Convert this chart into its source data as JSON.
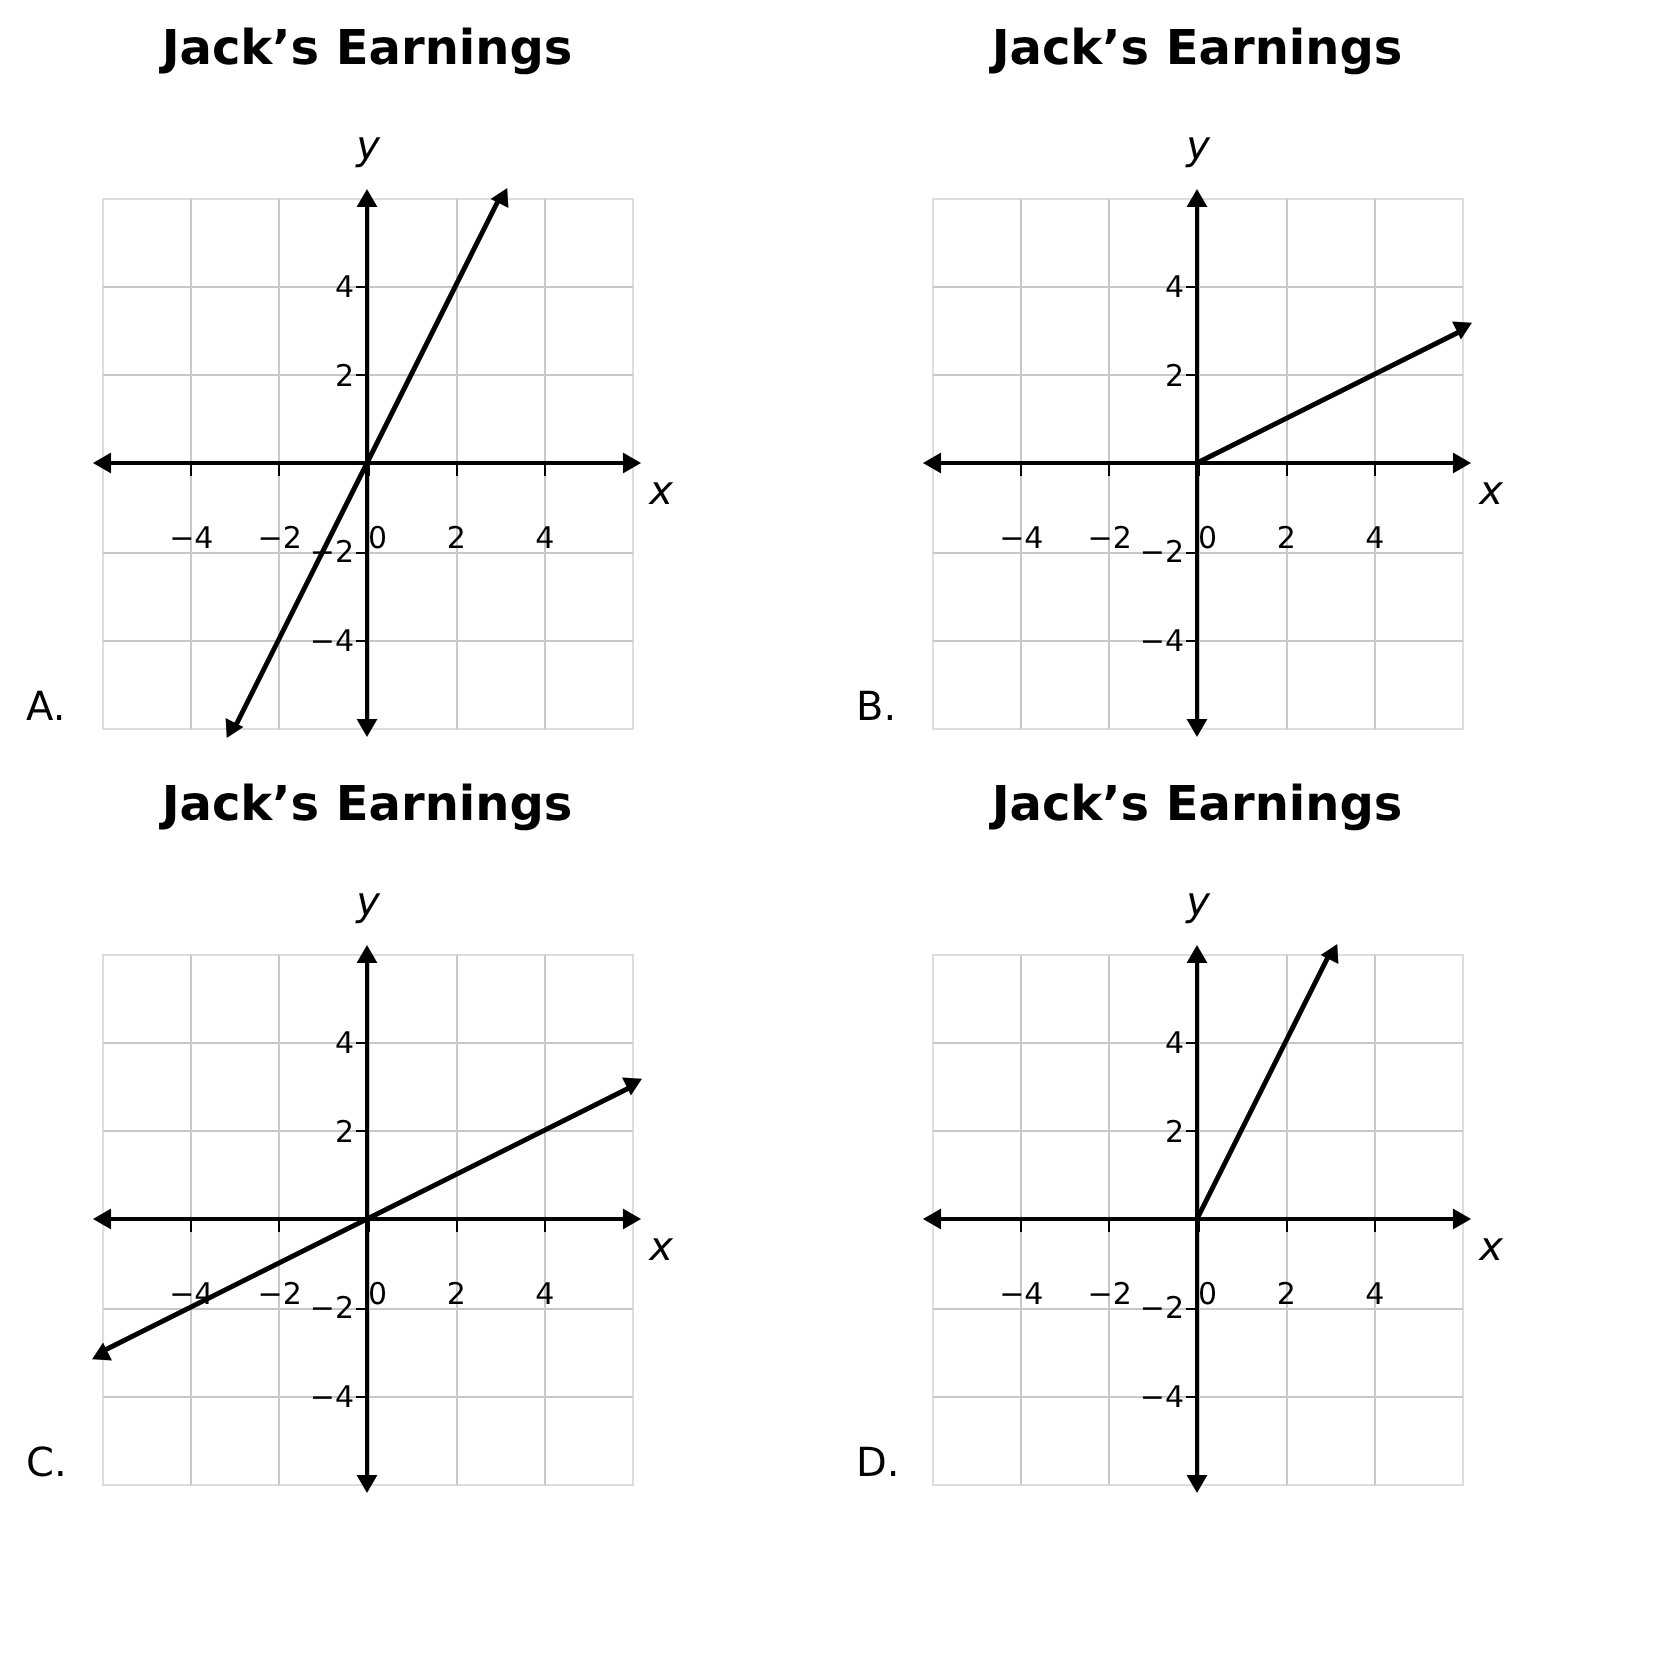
{
  "chart_data": [
    {
      "type": "line",
      "title": "Jack’s Earnings",
      "xlabel": "x",
      "ylabel": "y",
      "xlim": [
        -6,
        6
      ],
      "ylim": [
        -6,
        6
      ],
      "xticks": [
        -4,
        -2,
        0,
        2,
        4
      ],
      "yticks": [
        -4,
        -2,
        2,
        4
      ],
      "grid": true,
      "annotations": [
        "A."
      ],
      "series": [
        {
          "color": "#000000",
          "marker": "triangle",
          "x": [
            -3,
            3
          ],
          "values": [
            -6,
            6
          ]
        }
      ]
    },
    {
      "type": "line",
      "title": "Jack’s Earnings",
      "xlabel": "x",
      "ylabel": "y",
      "xlim": [
        -6,
        6
      ],
      "ylim": [
        -6,
        6
      ],
      "xticks": [
        -4,
        -2,
        0,
        2,
        4
      ],
      "yticks": [
        -4,
        -2,
        2,
        4
      ],
      "grid": true,
      "annotations": [
        "B."
      ],
      "series": [
        {
          "color": "#000000",
          "x": [
            0,
            6
          ],
          "values": [
            0,
            3
          ]
        }
      ]
    },
    {
      "type": "line",
      "title": "Jack’s Earnings",
      "xlabel": "x",
      "ylabel": "y",
      "xlim": [
        -6,
        6
      ],
      "ylim": [
        -6,
        6
      ],
      "xticks": [
        -4,
        -2,
        0,
        2,
        4
      ],
      "yticks": [
        -4,
        -2,
        2,
        4
      ],
      "grid": true,
      "annotations": [
        "C."
      ],
      "series": [
        {
          "color": "#000000",
          "marker": "triangle",
          "x": [
            -6,
            6
          ],
          "values": [
            -3,
            3
          ]
        }
      ]
    },
    {
      "type": "line",
      "title": "Jack’s Earnings",
      "xlabel": "x",
      "ylabel": "y",
      "xlim": [
        -6,
        6
      ],
      "ylim": [
        -6,
        6
      ],
      "xticks": [
        -4,
        -2,
        0,
        2,
        4
      ],
      "yticks": [
        -4,
        -2,
        2,
        4
      ],
      "grid": true,
      "annotations": [
        "D."
      ],
      "series": [
        {
          "color": "#000000",
          "x": [
            0,
            3
          ],
          "values": [
            0,
            6
          ]
        }
      ]
    }
  ]
}
